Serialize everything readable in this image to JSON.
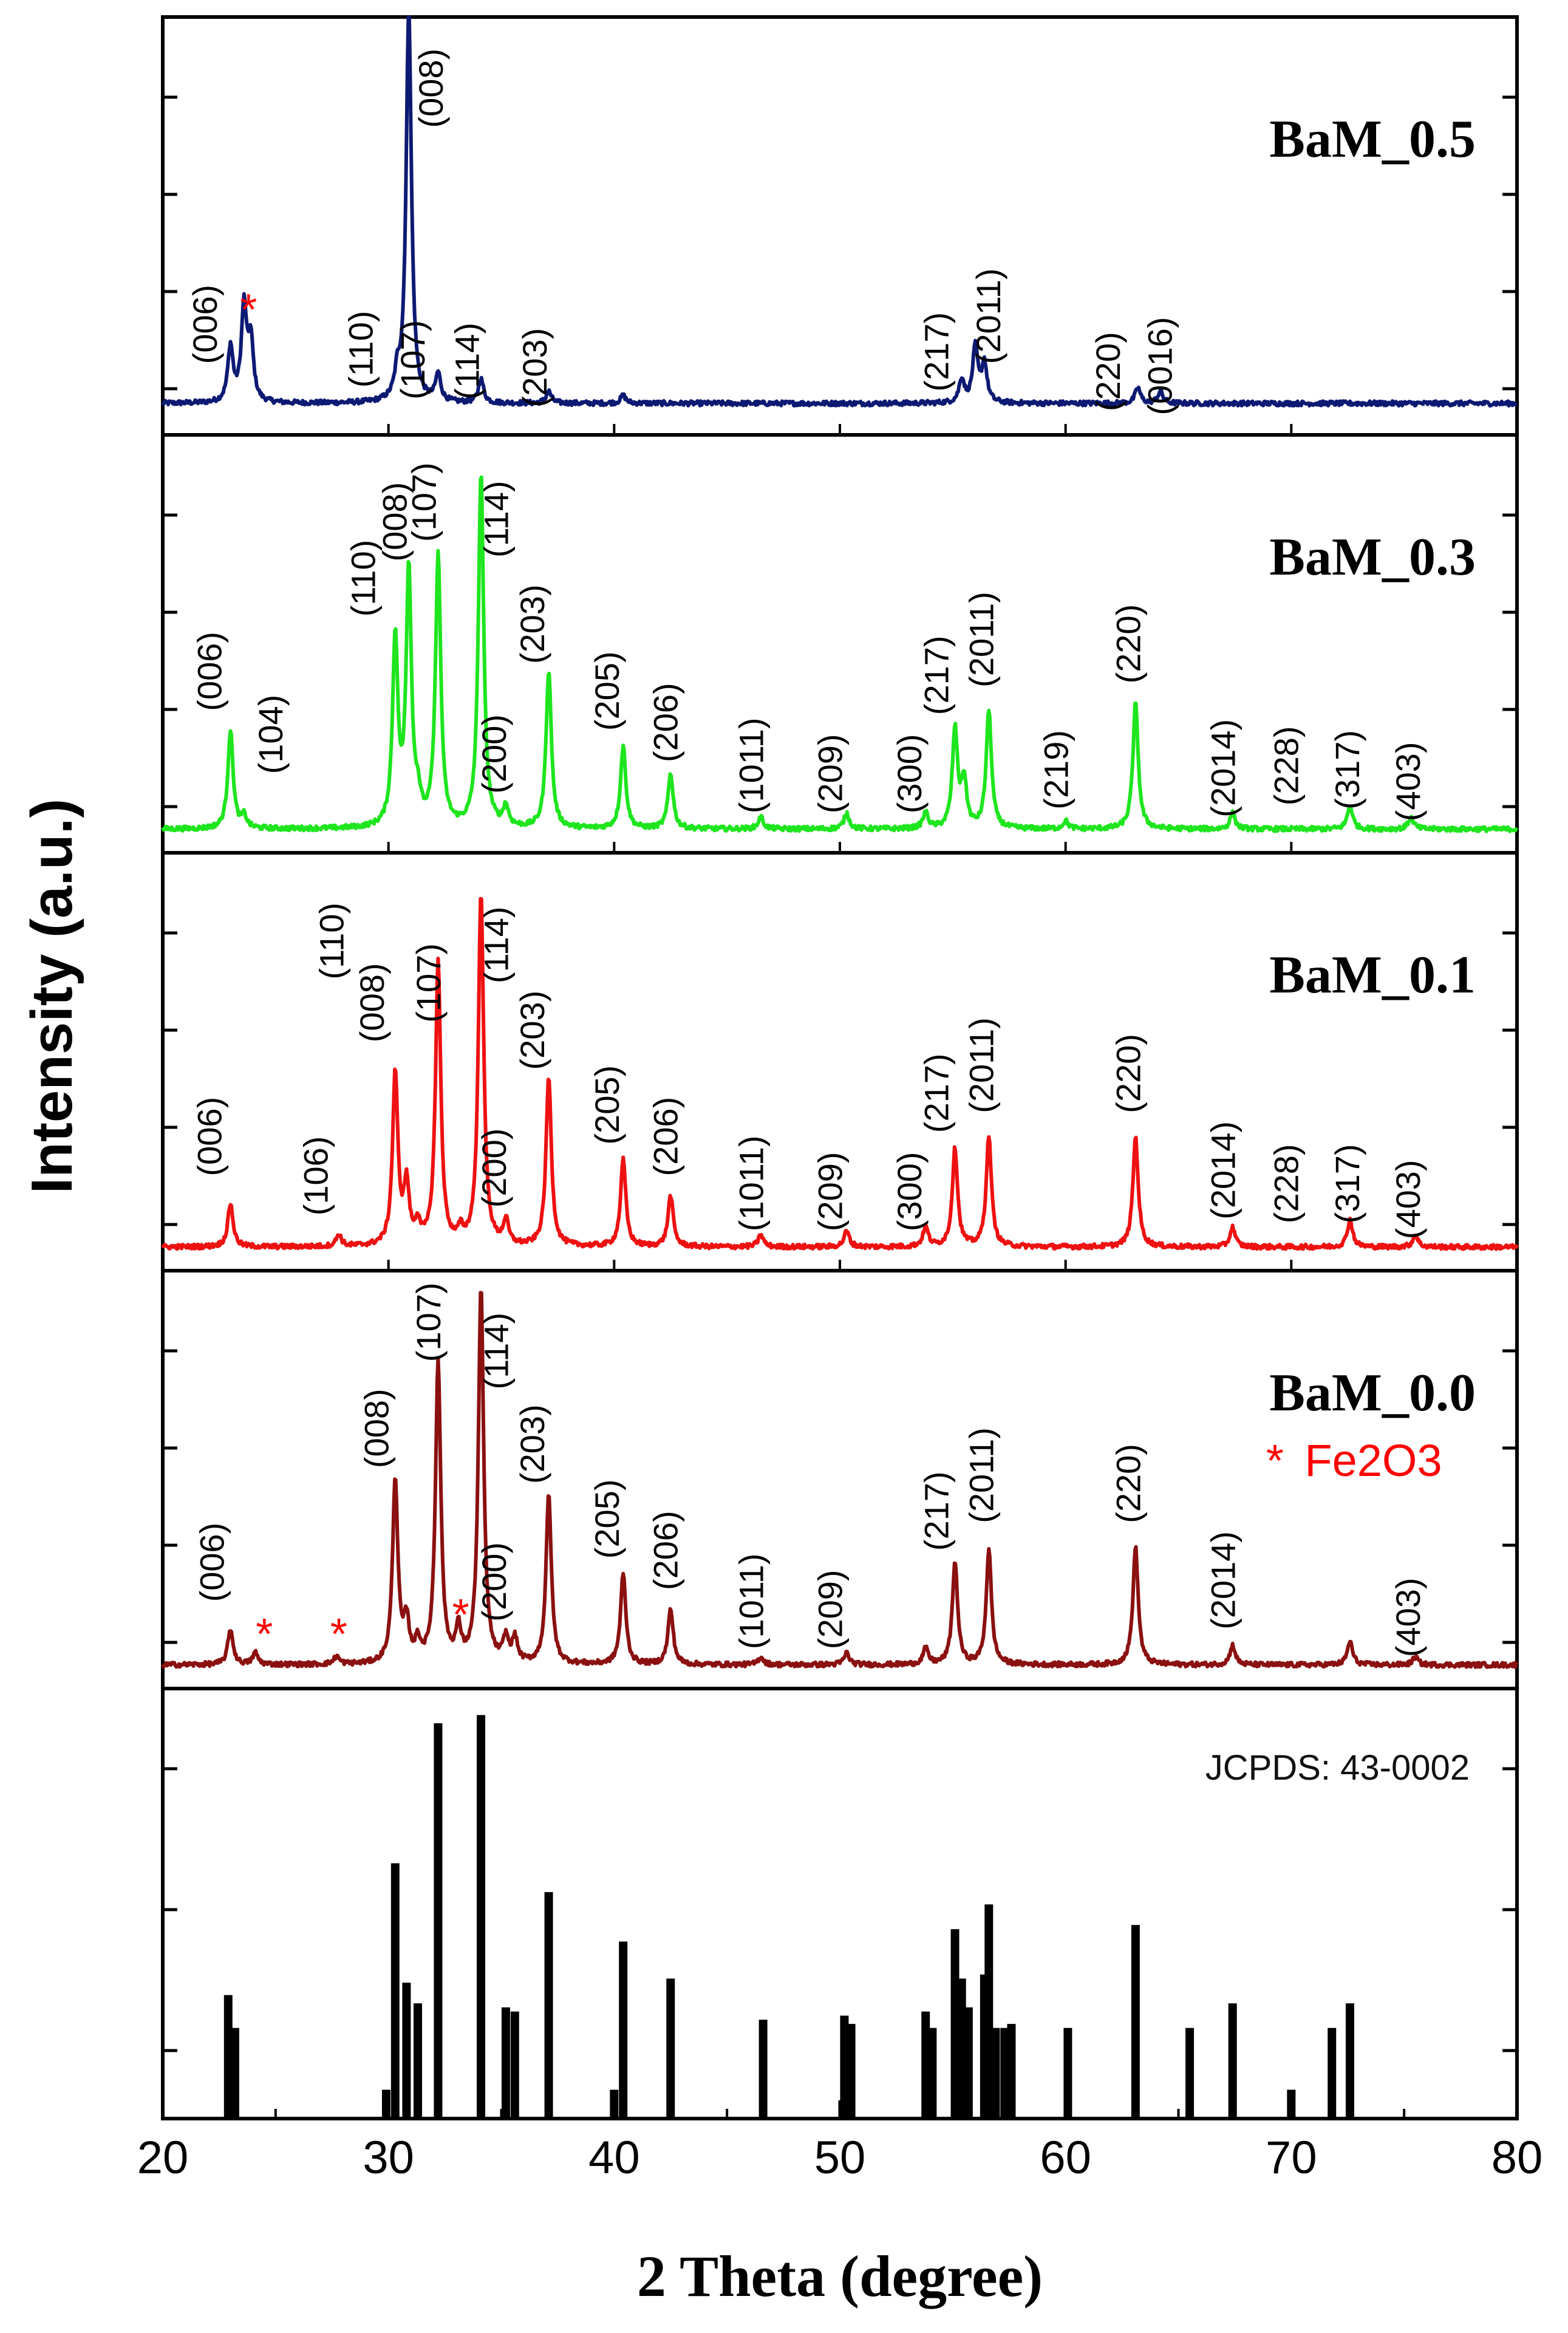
{
  "chart_data": {
    "type": "line",
    "title": "",
    "xlabel": "2 Theta (degree)",
    "ylabel": "Intensity (a.u.)",
    "xlim": [
      20,
      80
    ],
    "xticks": [
      "20",
      "30",
      "40",
      "50",
      "60",
      "70",
      "80"
    ],
    "grid": false,
    "panels": [
      {
        "name": "BaM_0.5",
        "color": "#0d1a73",
        "baseline": 0.08,
        "peaks": [
          {
            "x": 23.0,
            "h": 0.14
          },
          {
            "x": 23.6,
            "h": 0.24
          },
          {
            "x": 23.9,
            "h": 0.15
          },
          {
            "x": 30.4,
            "h": 0.06
          },
          {
            "x": 30.9,
            "h": 1.0
          },
          {
            "x": 32.2,
            "h": 0.07
          },
          {
            "x": 34.1,
            "h": 0.06
          },
          {
            "x": 37.1,
            "h": 0.03
          },
          {
            "x": 40.4,
            "h": 0.02
          },
          {
            "x": 55.4,
            "h": 0.06
          },
          {
            "x": 56.0,
            "h": 0.14
          },
          {
            "x": 56.4,
            "h": 0.1
          },
          {
            "x": 63.2,
            "h": 0.04
          },
          {
            "x": 64.2,
            "h": 0.03
          }
        ],
        "labels": [
          {
            "x": 22.4,
            "y": 0.18,
            "text": "(006)",
            "color": "#000000"
          },
          {
            "x": 23.8,
            "y": 0.28,
            "text": "*",
            "color": "#ff0000"
          },
          {
            "x": 29.3,
            "y": 0.12,
            "text": "(110)",
            "color": "#000000"
          },
          {
            "x": 32.4,
            "y": 0.78,
            "text": "(008)",
            "color": "#000000"
          },
          {
            "x": 31.6,
            "y": 0.09,
            "text": "(107)",
            "color": "#000000"
          },
          {
            "x": 34.0,
            "y": 0.09,
            "text": "(114)",
            "color": "#000000"
          },
          {
            "x": 37.0,
            "y": 0.07,
            "text": "(203)",
            "color": "#000000"
          },
          {
            "x": 54.8,
            "y": 0.11,
            "text": "(217)",
            "color": "#000000"
          },
          {
            "x": 57.1,
            "y": 0.18,
            "text": "(2011)",
            "color": "#000000"
          },
          {
            "x": 62.4,
            "y": 0.06,
            "text": "(220)",
            "color": "#000000"
          },
          {
            "x": 64.7,
            "y": 0.05,
            "text": "(0016)",
            "color": "#000000"
          }
        ]
      },
      {
        "name": "BaM_0.3",
        "color": "#1ee51e",
        "baseline": 0.06,
        "peaks": [
          {
            "x": 23.0,
            "h": 0.25
          },
          {
            "x": 23.6,
            "h": 0.03
          },
          {
            "x": 30.3,
            "h": 0.48
          },
          {
            "x": 30.9,
            "h": 0.65
          },
          {
            "x": 31.3,
            "h": 0.06
          },
          {
            "x": 32.2,
            "h": 0.69
          },
          {
            "x": 34.1,
            "h": 0.9
          },
          {
            "x": 35.2,
            "h": 0.05
          },
          {
            "x": 37.1,
            "h": 0.4
          },
          {
            "x": 40.4,
            "h": 0.21
          },
          {
            "x": 42.5,
            "h": 0.14
          },
          {
            "x": 46.5,
            "h": 0.03
          },
          {
            "x": 50.3,
            "h": 0.04
          },
          {
            "x": 53.8,
            "h": 0.04
          },
          {
            "x": 55.1,
            "h": 0.25
          },
          {
            "x": 55.5,
            "h": 0.12
          },
          {
            "x": 56.6,
            "h": 0.3
          },
          {
            "x": 60.0,
            "h": 0.02
          },
          {
            "x": 63.1,
            "h": 0.32
          },
          {
            "x": 67.4,
            "h": 0.04
          },
          {
            "x": 72.6,
            "h": 0.06
          },
          {
            "x": 75.3,
            "h": 0.03
          }
        ],
        "labels": [
          {
            "x": 22.6,
            "y": 0.36,
            "text": "(006)",
            "color": "#000000"
          },
          {
            "x": 25.3,
            "y": 0.2,
            "text": "(104)",
            "color": "#000000"
          },
          {
            "x": 29.4,
            "y": 0.6,
            "text": "(110)",
            "color": "#000000"
          },
          {
            "x": 30.8,
            "y": 0.74,
            "text": "(008)",
            "color": "#000000"
          },
          {
            "x": 32.1,
            "y": 0.79,
            "text": "(107)",
            "color": "#000000"
          },
          {
            "x": 35.3,
            "y": 0.75,
            "text": "(114)",
            "color": "#000000"
          },
          {
            "x": 35.2,
            "y": 0.15,
            "text": "(200)",
            "color": "#000000"
          },
          {
            "x": 36.9,
            "y": 0.48,
            "text": "(203)",
            "color": "#000000"
          },
          {
            "x": 40.2,
            "y": 0.31,
            "text": "(205)",
            "color": "#000000"
          },
          {
            "x": 42.8,
            "y": 0.23,
            "text": "(206)",
            "color": "#000000"
          },
          {
            "x": 46.6,
            "y": 0.1,
            "text": "(1011)",
            "color": "#000000"
          },
          {
            "x": 50.1,
            "y": 0.1,
            "text": "(209)",
            "color": "#000000"
          },
          {
            "x": 53.6,
            "y": 0.1,
            "text": "(300)",
            "color": "#000000"
          },
          {
            "x": 54.8,
            "y": 0.35,
            "text": "(217)",
            "color": "#000000"
          },
          {
            "x": 56.8,
            "y": 0.42,
            "text": "(2011)",
            "color": "#000000"
          },
          {
            "x": 60.1,
            "y": 0.11,
            "text": "(219)",
            "color": "#000000"
          },
          {
            "x": 63.3,
            "y": 0.43,
            "text": "(220)",
            "color": "#000000"
          },
          {
            "x": 67.5,
            "y": 0.09,
            "text": "(2014)",
            "color": "#000000"
          },
          {
            "x": 70.3,
            "y": 0.12,
            "text": "(228)",
            "color": "#000000"
          },
          {
            "x": 73.0,
            "y": 0.11,
            "text": "(317)",
            "color": "#000000"
          },
          {
            "x": 75.7,
            "y": 0.08,
            "text": "(403)",
            "color": "#000000"
          }
        ]
      },
      {
        "name": "BaM_0.1",
        "color": "#ee1111",
        "baseline": 0.06,
        "peaks": [
          {
            "x": 23.0,
            "h": 0.11
          },
          {
            "x": 27.8,
            "h": 0.03
          },
          {
            "x": 30.3,
            "h": 0.44
          },
          {
            "x": 30.8,
            "h": 0.15
          },
          {
            "x": 31.3,
            "h": 0.05
          },
          {
            "x": 32.2,
            "h": 0.72
          },
          {
            "x": 33.2,
            "h": 0.03
          },
          {
            "x": 34.1,
            "h": 0.9
          },
          {
            "x": 35.2,
            "h": 0.06
          },
          {
            "x": 37.1,
            "h": 0.43
          },
          {
            "x": 40.4,
            "h": 0.22
          },
          {
            "x": 42.5,
            "h": 0.13
          },
          {
            "x": 46.5,
            "h": 0.03
          },
          {
            "x": 50.3,
            "h": 0.04
          },
          {
            "x": 53.8,
            "h": 0.05
          },
          {
            "x": 55.1,
            "h": 0.25
          },
          {
            "x": 56.6,
            "h": 0.28
          },
          {
            "x": 63.1,
            "h": 0.28
          },
          {
            "x": 67.4,
            "h": 0.05
          },
          {
            "x": 72.6,
            "h": 0.07
          },
          {
            "x": 75.5,
            "h": 0.03
          }
        ],
        "labels": [
          {
            "x": 22.6,
            "y": 0.24,
            "text": "(006)",
            "color": "#000000"
          },
          {
            "x": 27.3,
            "y": 0.14,
            "text": "(106)",
            "color": "#000000"
          },
          {
            "x": 28.0,
            "y": 0.74,
            "text": "(110)",
            "color": "#000000"
          },
          {
            "x": 29.8,
            "y": 0.58,
            "text": "(008)",
            "color": "#000000"
          },
          {
            "x": 32.3,
            "y": 0.63,
            "text": "(107)",
            "color": "#000000"
          },
          {
            "x": 35.3,
            "y": 0.73,
            "text": "(114)",
            "color": "#000000"
          },
          {
            "x": 35.2,
            "y": 0.16,
            "text": "(200)",
            "color": "#000000"
          },
          {
            "x": 36.9,
            "y": 0.51,
            "text": "(203)",
            "color": "#000000"
          },
          {
            "x": 40.2,
            "y": 0.32,
            "text": "(205)",
            "color": "#000000"
          },
          {
            "x": 42.8,
            "y": 0.24,
            "text": "(206)",
            "color": "#000000"
          },
          {
            "x": 46.6,
            "y": 0.1,
            "text": "(1011)",
            "color": "#000000"
          },
          {
            "x": 50.1,
            "y": 0.1,
            "text": "(209)",
            "color": "#000000"
          },
          {
            "x": 53.6,
            "y": 0.1,
            "text": "(300)",
            "color": "#000000"
          },
          {
            "x": 54.8,
            "y": 0.35,
            "text": "(217)",
            "color": "#000000"
          },
          {
            "x": 56.8,
            "y": 0.4,
            "text": "(2011)",
            "color": "#000000"
          },
          {
            "x": 63.3,
            "y": 0.4,
            "text": "(220)",
            "color": "#000000"
          },
          {
            "x": 67.5,
            "y": 0.13,
            "text": "(2014)",
            "color": "#000000"
          },
          {
            "x": 70.3,
            "y": 0.12,
            "text": "(228)",
            "color": "#000000"
          },
          {
            "x": 73.0,
            "y": 0.12,
            "text": "(317)",
            "color": "#000000"
          },
          {
            "x": 75.7,
            "y": 0.08,
            "text": "(403)",
            "color": "#000000"
          }
        ]
      },
      {
        "name": "BaM_0.0",
        "color": "#8b1010",
        "baseline": 0.06,
        "peaks": [
          {
            "x": 23.0,
            "h": 0.09
          },
          {
            "x": 24.1,
            "h": 0.03
          },
          {
            "x": 27.7,
            "h": 0.02
          },
          {
            "x": 30.3,
            "h": 0.47
          },
          {
            "x": 30.8,
            "h": 0.1
          },
          {
            "x": 31.3,
            "h": 0.05
          },
          {
            "x": 32.2,
            "h": 0.77
          },
          {
            "x": 33.1,
            "h": 0.08
          },
          {
            "x": 34.1,
            "h": 0.95
          },
          {
            "x": 35.2,
            "h": 0.06
          },
          {
            "x": 35.6,
            "h": 0.06
          },
          {
            "x": 37.1,
            "h": 0.43
          },
          {
            "x": 40.4,
            "h": 0.23
          },
          {
            "x": 42.5,
            "h": 0.14
          },
          {
            "x": 46.5,
            "h": 0.02
          },
          {
            "x": 50.3,
            "h": 0.03
          },
          {
            "x": 53.8,
            "h": 0.04
          },
          {
            "x": 55.1,
            "h": 0.26
          },
          {
            "x": 56.6,
            "h": 0.29
          },
          {
            "x": 63.1,
            "h": 0.3
          },
          {
            "x": 67.4,
            "h": 0.05
          },
          {
            "x": 72.6,
            "h": 0.06
          },
          {
            "x": 75.5,
            "h": 0.02
          }
        ],
        "labels": [
          {
            "x": 22.7,
            "y": 0.22,
            "text": "(006)",
            "color": "#000000"
          },
          {
            "x": 24.5,
            "y": 0.1,
            "text": "*",
            "color": "#ff0000"
          },
          {
            "x": 27.8,
            "y": 0.1,
            "text": "*",
            "color": "#ff0000"
          },
          {
            "x": 33.2,
            "y": 0.15,
            "text": "*",
            "color": "#ff0000"
          },
          {
            "x": 30.0,
            "y": 0.56,
            "text": "(008)",
            "color": "#000000"
          },
          {
            "x": 32.3,
            "y": 0.83,
            "text": "(107)",
            "color": "#000000"
          },
          {
            "x": 35.3,
            "y": 0.76,
            "text": "(114)",
            "color": "#000000"
          },
          {
            "x": 35.2,
            "y": 0.17,
            "text": "(200)",
            "color": "#000000"
          },
          {
            "x": 36.9,
            "y": 0.52,
            "text": "(203)",
            "color": "#000000"
          },
          {
            "x": 40.2,
            "y": 0.33,
            "text": "(205)",
            "color": "#000000"
          },
          {
            "x": 42.8,
            "y": 0.25,
            "text": "(206)",
            "color": "#000000"
          },
          {
            "x": 46.6,
            "y": 0.1,
            "text": "(1011)",
            "color": "#000000"
          },
          {
            "x": 50.1,
            "y": 0.1,
            "text": "(209)",
            "color": "#000000"
          },
          {
            "x": 54.8,
            "y": 0.35,
            "text": "(217)",
            "color": "#000000"
          },
          {
            "x": 56.8,
            "y": 0.42,
            "text": "(2011)",
            "color": "#000000"
          },
          {
            "x": 63.3,
            "y": 0.42,
            "text": "(220)",
            "color": "#000000"
          },
          {
            "x": 67.5,
            "y": 0.15,
            "text": "(2014)",
            "color": "#000000"
          },
          {
            "x": 75.7,
            "y": 0.08,
            "text": "(403)",
            "color": "#000000"
          }
        ]
      }
    ],
    "legend": {
      "marker": "*",
      "text": "Fe2O3",
      "color": "#ff0000"
    },
    "reference": {
      "label": "JCPDS: 43-0002",
      "color": "#000000",
      "lines": [
        {
          "x": 22.9,
          "h": 0.3
        },
        {
          "x": 23.2,
          "h": 0.22
        },
        {
          "x": 29.9,
          "h": 0.07
        },
        {
          "x": 30.3,
          "h": 0.62
        },
        {
          "x": 30.8,
          "h": 0.33
        },
        {
          "x": 31.3,
          "h": 0.28
        },
        {
          "x": 32.2,
          "h": 0.96
        },
        {
          "x": 34.1,
          "h": 0.98
        },
        {
          "x": 35.2,
          "h": 0.27
        },
        {
          "x": 35.6,
          "h": 0.26
        },
        {
          "x": 37.1,
          "h": 0.55
        },
        {
          "x": 40.0,
          "h": 0.07
        },
        {
          "x": 40.4,
          "h": 0.43
        },
        {
          "x": 42.5,
          "h": 0.34
        },
        {
          "x": 46.6,
          "h": 0.24
        },
        {
          "x": 50.2,
          "h": 0.25
        },
        {
          "x": 50.5,
          "h": 0.23
        },
        {
          "x": 53.8,
          "h": 0.26
        },
        {
          "x": 54.1,
          "h": 0.22
        },
        {
          "x": 55.1,
          "h": 0.46
        },
        {
          "x": 55.4,
          "h": 0.34
        },
        {
          "x": 55.7,
          "h": 0.27
        },
        {
          "x": 56.4,
          "h": 0.35
        },
        {
          "x": 56.6,
          "h": 0.52
        },
        {
          "x": 56.9,
          "h": 0.22
        },
        {
          "x": 57.3,
          "h": 0.22
        },
        {
          "x": 57.6,
          "h": 0.23
        },
        {
          "x": 60.1,
          "h": 0.22
        },
        {
          "x": 63.1,
          "h": 0.47
        },
        {
          "x": 65.5,
          "h": 0.22
        },
        {
          "x": 67.4,
          "h": 0.28
        },
        {
          "x": 70.0,
          "h": 0.07
        },
        {
          "x": 71.8,
          "h": 0.22
        },
        {
          "x": 72.6,
          "h": 0.28
        }
      ]
    }
  }
}
